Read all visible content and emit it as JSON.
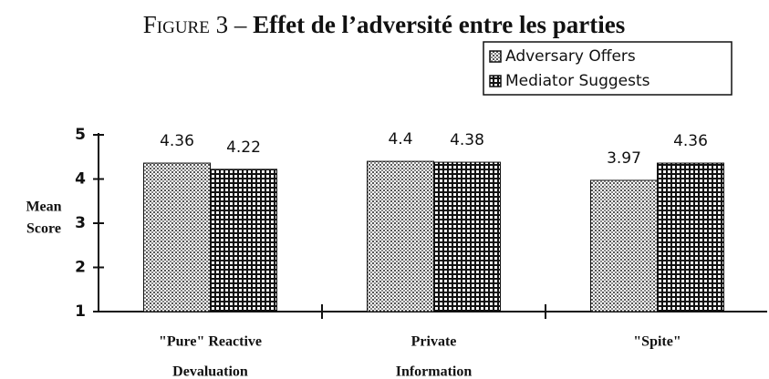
{
  "chart_data": {
    "type": "bar",
    "figure_label": "Figure 3 –",
    "title": "Effet de l’adversité entre les parties",
    "ylabel": [
      "Mean",
      "Score"
    ],
    "categories": [
      [
        "\"Pure\" Reactive",
        "Devaluation"
      ],
      [
        "Private",
        "Information"
      ],
      [
        "\"Spite\""
      ]
    ],
    "series": [
      {
        "name": "Adversary Offers",
        "color": "#999999",
        "values": [
          4.36,
          4.4,
          3.97
        ]
      },
      {
        "name": "Mediator Suggests",
        "color": "#222222",
        "values": [
          4.22,
          4.38,
          4.36
        ]
      }
    ],
    "ylim": [
      1,
      5
    ],
    "yticks": [
      1,
      2,
      3,
      4,
      5
    ],
    "legend": "top-right"
  }
}
